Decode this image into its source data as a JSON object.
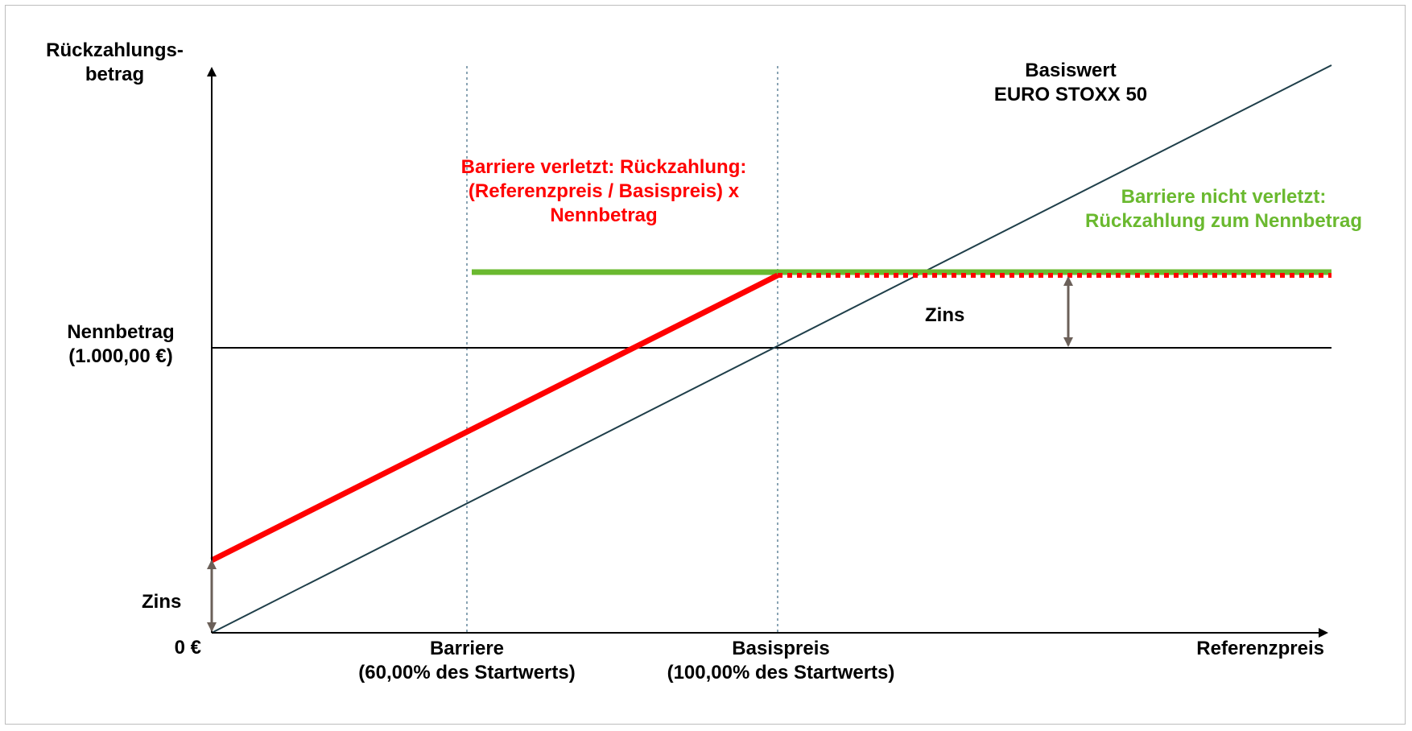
{
  "y_axis_label": [
    "Rückzahlungs-",
    "betrag"
  ],
  "x_axis_label": "Referenzpreis",
  "origin_label": "0 €",
  "nennbetrag_label": [
    "Nennbetrag",
    "(1.000,00 €)"
  ],
  "zins_label_left": "Zins",
  "zins_label_right": "Zins",
  "barriere_label": [
    "Barriere",
    "(60,00% des Startwerts)"
  ],
  "basispreis_label": [
    "Basispreis",
    "(100,00% des Startwerts)"
  ],
  "basiswert_label": [
    "Basiswert",
    "EURO STOXX 50"
  ],
  "red_annotation": [
    "Barriere verletzt: Rückzahlung:",
    "(Referenzpreis / Basispreis) x",
    "Nennbetrag"
  ],
  "green_annotation": [
    "Barriere nicht verletzt:",
    "Rückzahlung zum Nennbetrag"
  ],
  "colors": {
    "red": "#ff0000",
    "green": "#6ab92f",
    "basiswert_line": "#1f3f4a",
    "arrow": "#6b6059",
    "dotted_vertical": "#8aa4b4"
  }
}
